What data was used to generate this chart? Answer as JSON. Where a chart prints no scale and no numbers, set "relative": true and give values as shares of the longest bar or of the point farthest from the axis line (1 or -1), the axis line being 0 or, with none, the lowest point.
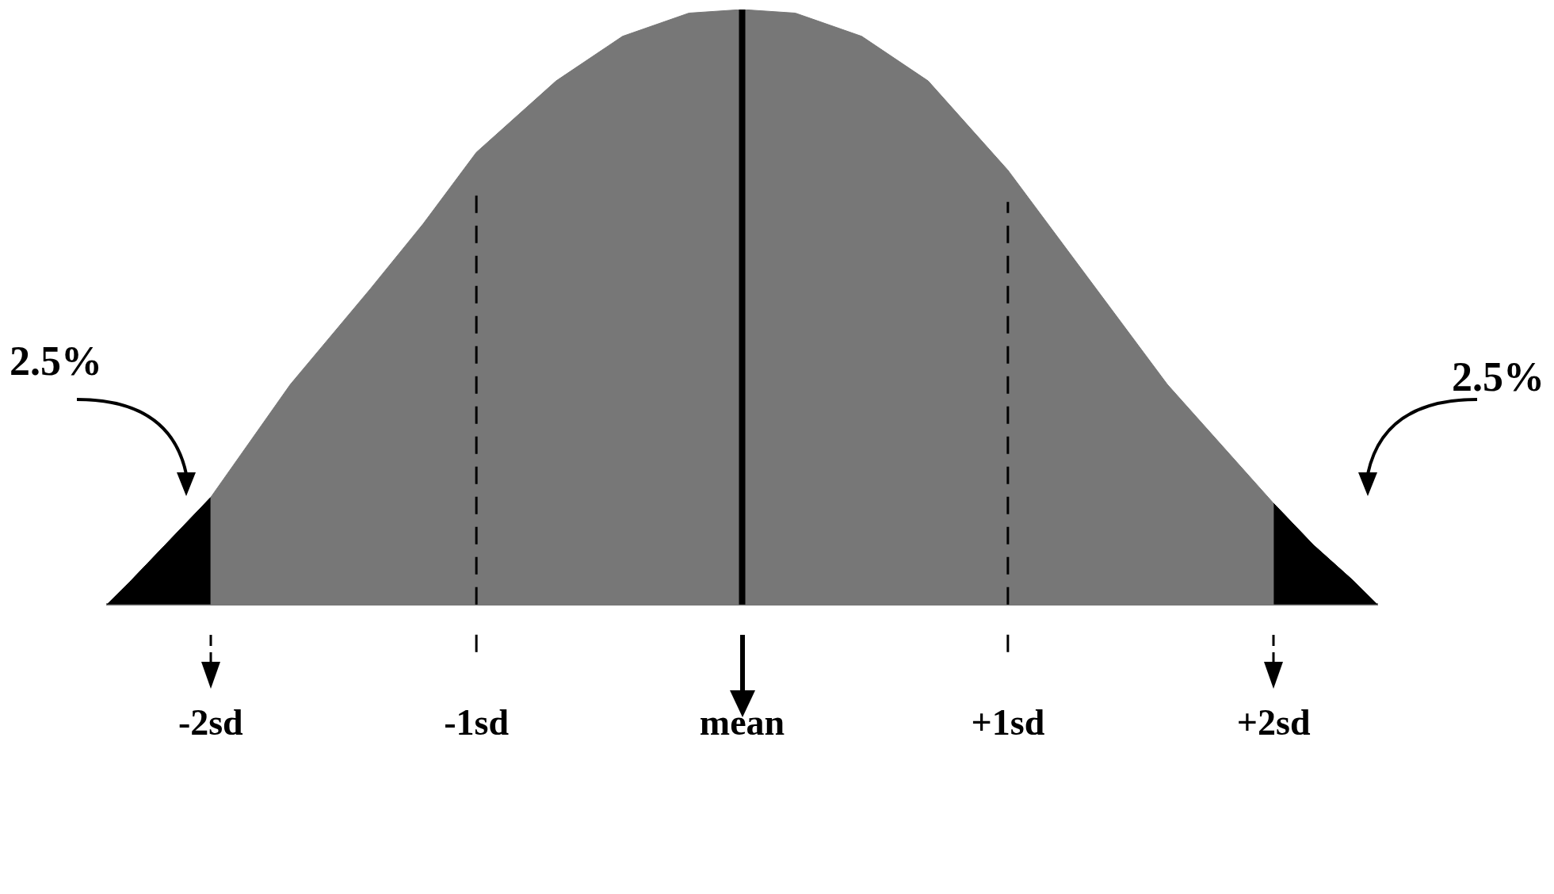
{
  "chart_data": {
    "type": "area",
    "relative": true,
    "legend": false,
    "grid": false,
    "xlim": [
      -2.39,
      2.39
    ],
    "xticks": [
      {
        "value": -2,
        "label": "-2sd"
      },
      {
        "value": -1,
        "label": "-1sd"
      },
      {
        "value": 0,
        "label": "mean"
      },
      {
        "value": 1,
        "label": "+1sd"
      },
      {
        "value": 2,
        "label": "+2sd"
      }
    ],
    "series": [
      {
        "color": "#777777",
        "x": [
          -2.39,
          -2.3,
          -2.15,
          -2,
          -1.7,
          -1.4,
          -1.2,
          -1,
          -0.7,
          -0.45,
          -0.2,
          0,
          0.2,
          0.45,
          0.7,
          1,
          1.3,
          1.6,
          2,
          2.15,
          2.3,
          2.39
        ],
        "values": [
          0,
          0.04,
          0.11,
          0.18,
          0.37,
          0.53,
          0.64,
          0.76,
          0.88,
          0.955,
          0.994,
          1,
          0.994,
          0.955,
          0.88,
          0.73,
          0.55,
          0.37,
          0.17,
          0.1,
          0.04,
          0
        ]
      },
      {
        "color": "#000000",
        "x": [
          -2.39,
          -2.3,
          -2.15,
          -2
        ],
        "values": [
          0,
          0.04,
          0.11,
          0.18
        ]
      },
      {
        "color": "#000000",
        "x": [
          2,
          2.15,
          2.3,
          2.39
        ],
        "values": [
          0.17,
          0.1,
          0.04,
          0
        ]
      }
    ],
    "ref_lines": [
      {
        "axis": "x",
        "value": -1,
        "line_style": "dashed",
        "color": "#000000"
      },
      {
        "axis": "x",
        "value": 0,
        "line_style": "solid",
        "color": "#000000"
      },
      {
        "axis": "x",
        "value": 1,
        "line_style": "dashed",
        "color": "#000000"
      }
    ],
    "annotations": [
      "2.5%",
      "2.5%"
    ]
  }
}
